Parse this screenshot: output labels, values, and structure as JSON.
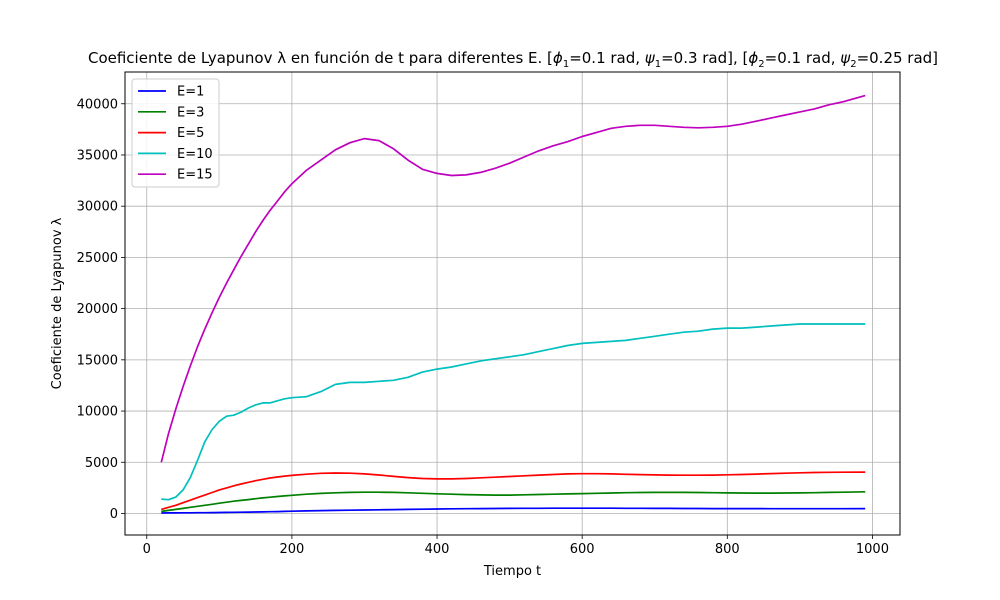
{
  "chart_data": {
    "type": "line",
    "title_parts": {
      "prefix": "Coeficiente de Lyapunov λ en función de t para diferentes E. [",
      "phi1_symbol": "ϕ",
      "phi1_sub": "1",
      "phi1_value": "=0.1 rad, ",
      "psi1_symbol": "ψ",
      "psi1_sub": "1",
      "psi1_value": "=0.3 rad], [",
      "phi2_symbol": "ϕ",
      "phi2_sub": "2",
      "phi2_value": "=0.1 rad, ",
      "psi2_symbol": "ψ",
      "psi2_sub": "2",
      "psi2_value": "=0.25 rad]"
    },
    "xlabel": "Tiempo t",
    "ylabel": "Coeficiente de Lyapunov λ",
    "xlim": [
      -30,
      1038
    ],
    "ylim": [
      -2100,
      43100
    ],
    "xticks": [
      0,
      200,
      400,
      600,
      800,
      1000
    ],
    "yticks": [
      0,
      5000,
      10000,
      15000,
      20000,
      25000,
      30000,
      35000,
      40000
    ],
    "grid": true,
    "legend_position": "top-left",
    "x": [
      20,
      30,
      40,
      50,
      60,
      70,
      80,
      90,
      100,
      110,
      120,
      130,
      140,
      150,
      160,
      170,
      180,
      190,
      200,
      220,
      240,
      260,
      280,
      300,
      320,
      340,
      360,
      380,
      400,
      420,
      440,
      460,
      480,
      500,
      520,
      540,
      560,
      580,
      600,
      620,
      640,
      660,
      680,
      700,
      720,
      740,
      760,
      780,
      800,
      820,
      840,
      860,
      880,
      900,
      920,
      940,
      960,
      990
    ],
    "series": [
      {
        "name": "E=1",
        "color": "#0000ff",
        "values": [
          50,
          55,
          60,
          65,
          70,
          75,
          80,
          90,
          100,
          110,
          120,
          130,
          140,
          150,
          160,
          170,
          185,
          200,
          220,
          250,
          280,
          300,
          320,
          340,
          360,
          380,
          400,
          420,
          440,
          460,
          470,
          480,
          490,
          500,
          505,
          510,
          515,
          520,
          520,
          520,
          515,
          510,
          505,
          500,
          495,
          490,
          485,
          480,
          480,
          475,
          475,
          470,
          470,
          470,
          470,
          470,
          470,
          480
        ]
      },
      {
        "name": "E=3",
        "color": "#008000",
        "values": [
          200,
          300,
          400,
          500,
          600,
          700,
          800,
          900,
          1000,
          1100,
          1200,
          1280,
          1360,
          1440,
          1520,
          1590,
          1660,
          1720,
          1780,
          1880,
          1960,
          2020,
          2060,
          2080,
          2080,
          2060,
          2020,
          1970,
          1920,
          1880,
          1840,
          1810,
          1800,
          1800,
          1820,
          1850,
          1880,
          1910,
          1940,
          1970,
          2000,
          2030,
          2050,
          2060,
          2060,
          2060,
          2050,
          2030,
          2010,
          2000,
          1990,
          1990,
          2000,
          2010,
          2030,
          2060,
          2080,
          2120
        ]
      },
      {
        "name": "E=5",
        "color": "#ff0000",
        "values": [
          400,
          600,
          800,
          1050,
          1300,
          1550,
          1800,
          2050,
          2300,
          2500,
          2700,
          2880,
          3040,
          3200,
          3340,
          3460,
          3560,
          3650,
          3720,
          3840,
          3920,
          3950,
          3930,
          3860,
          3760,
          3620,
          3500,
          3420,
          3380,
          3380,
          3420,
          3480,
          3540,
          3610,
          3680,
          3750,
          3810,
          3860,
          3880,
          3880,
          3860,
          3830,
          3800,
          3770,
          3750,
          3740,
          3740,
          3750,
          3780,
          3810,
          3850,
          3890,
          3930,
          3970,
          4000,
          4020,
          4030,
          4040
        ]
      },
      {
        "name": "E=10",
        "color": "#00bfbf",
        "values": [
          1400,
          1350,
          1600,
          2300,
          3500,
          5200,
          7000,
          8200,
          9000,
          9500,
          9600,
          9900,
          10300,
          10600,
          10800,
          10800,
          11000,
          11200,
          11300,
          11400,
          11900,
          12600,
          12800,
          12800,
          12900,
          13000,
          13300,
          13800,
          14100,
          14300,
          14600,
          14900,
          15100,
          15300,
          15500,
          15800,
          16100,
          16400,
          16600,
          16700,
          16800,
          16900,
          17100,
          17300,
          17500,
          17700,
          17800,
          18000,
          18100,
          18100,
          18200,
          18300,
          18400,
          18500,
          18500,
          18500,
          18500,
          18500
        ]
      },
      {
        "name": "E=15",
        "color": "#bf00bf",
        "values": [
          5000,
          7800,
          10200,
          12400,
          14400,
          16300,
          18000,
          19600,
          21100,
          22500,
          23800,
          25100,
          26300,
          27500,
          28600,
          29600,
          30500,
          31400,
          32200,
          33500,
          34500,
          35500,
          36200,
          36600,
          36400,
          35600,
          34500,
          33600,
          33200,
          33000,
          33050,
          33300,
          33700,
          34200,
          34800,
          35400,
          35900,
          36300,
          36800,
          37200,
          37600,
          37800,
          37900,
          37900,
          37800,
          37700,
          37650,
          37700,
          37800,
          38000,
          38300,
          38600,
          38900,
          39200,
          39500,
          39900,
          40200,
          40800
        ]
      }
    ]
  }
}
